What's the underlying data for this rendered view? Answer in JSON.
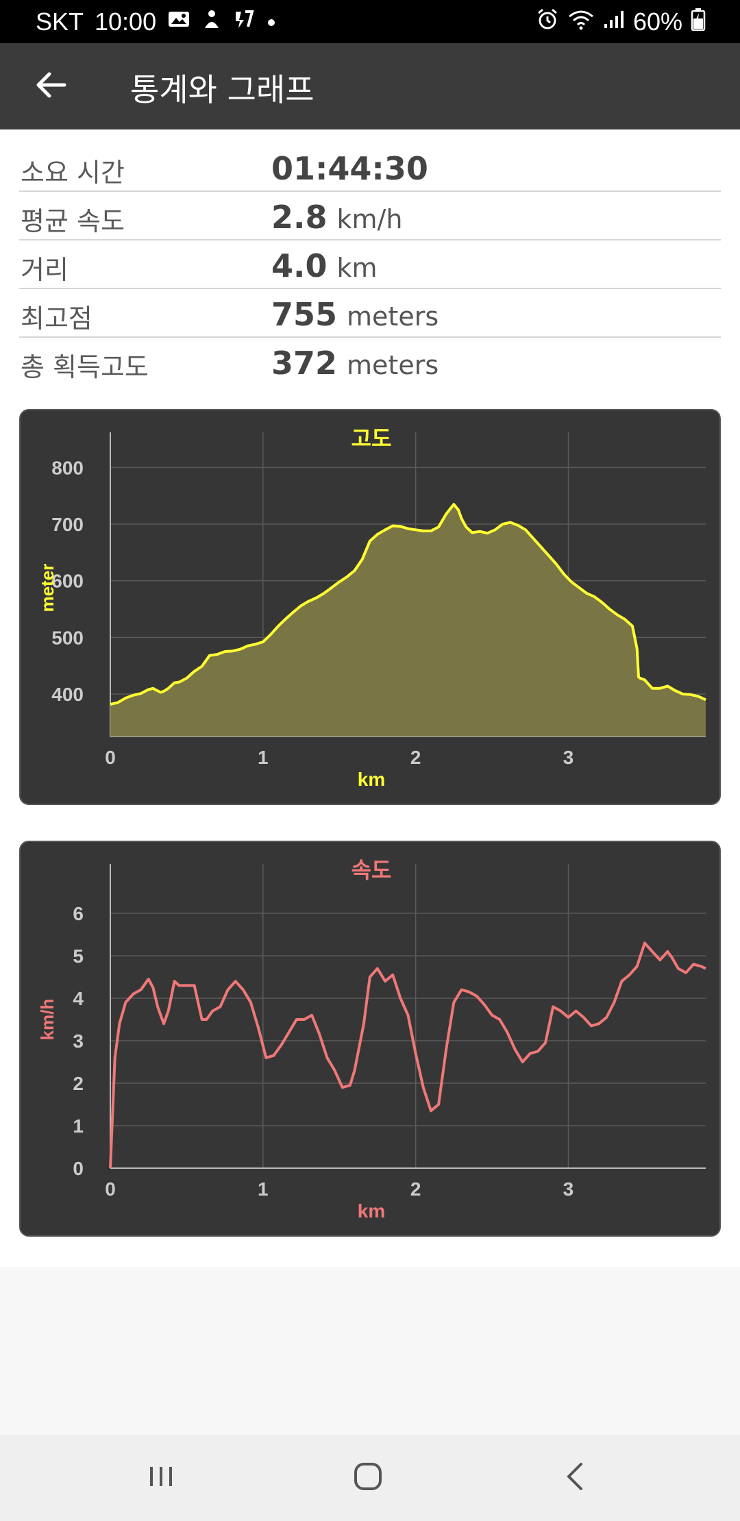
{
  "status_bar": {
    "carrier": "SKT",
    "time": "10:00",
    "battery": "60%",
    "icons": [
      "gallery-icon",
      "person-icon",
      "flash-icon",
      "dot-icon",
      "alarm-icon",
      "wifi-icon",
      "signal-icon",
      "battery-icon"
    ]
  },
  "app_bar": {
    "title": "통계와 그래프",
    "back_icon": "arrow-left-icon"
  },
  "stats": [
    {
      "label": "소요 시간",
      "value": "01:44:30",
      "unit": ""
    },
    {
      "label": "평균 속도",
      "value": "2.8",
      "unit": "km/h"
    },
    {
      "label": "거리",
      "value": "4.0",
      "unit": "km"
    },
    {
      "label": "최고점",
      "value": "755",
      "unit": "meters"
    },
    {
      "label": "총 획득고도",
      "value": "372",
      "unit": "meters"
    }
  ],
  "colors": {
    "elevation": "#ffff33",
    "elevation_fill": "#7a7544",
    "speed": "#f07878",
    "card_bg": "#363636",
    "grid": "#5a5a5a",
    "tick": "#cccccc"
  },
  "chart_data": [
    {
      "type": "area",
      "title": "고도",
      "xlabel": "km",
      "ylabel": "meter",
      "xlim": [
        0,
        3.9
      ],
      "ylim": [
        325,
        850
      ],
      "xticks": [
        0,
        1,
        2,
        3
      ],
      "yticks": [
        400,
        500,
        600,
        700,
        800
      ],
      "grid": true,
      "x": [
        0,
        0.05,
        0.1,
        0.15,
        0.2,
        0.25,
        0.28,
        0.3,
        0.33,
        0.35,
        0.38,
        0.42,
        0.45,
        0.5,
        0.55,
        0.6,
        0.65,
        0.7,
        0.75,
        0.8,
        0.85,
        0.9,
        0.95,
        1.0,
        1.05,
        1.1,
        1.15,
        1.2,
        1.25,
        1.3,
        1.35,
        1.4,
        1.45,
        1.5,
        1.55,
        1.6,
        1.65,
        1.7,
        1.75,
        1.8,
        1.85,
        1.9,
        1.95,
        2.0,
        2.05,
        2.1,
        2.15,
        2.2,
        2.25,
        2.28,
        2.3,
        2.33,
        2.37,
        2.42,
        2.47,
        2.52,
        2.57,
        2.62,
        2.67,
        2.72,
        2.77,
        2.82,
        2.87,
        2.92,
        2.97,
        3.02,
        3.07,
        3.12,
        3.17,
        3.22,
        3.27,
        3.32,
        3.37,
        3.42,
        3.45,
        3.46,
        3.47,
        3.5,
        3.55,
        3.6,
        3.65,
        3.7,
        3.75,
        3.8,
        3.85,
        3.9
      ],
      "y": [
        382,
        385,
        393,
        398,
        401,
        408,
        410,
        407,
        403,
        405,
        410,
        420,
        421,
        428,
        440,
        449,
        468,
        470,
        475,
        476,
        479,
        485,
        488,
        492,
        505,
        520,
        533,
        545,
        556,
        564,
        570,
        578,
        588,
        598,
        607,
        618,
        638,
        670,
        682,
        690,
        697,
        696,
        692,
        690,
        688,
        688,
        695,
        718,
        735,
        725,
        710,
        695,
        685,
        687,
        684,
        690,
        700,
        703,
        698,
        690,
        675,
        660,
        645,
        630,
        612,
        598,
        588,
        578,
        572,
        562,
        550,
        540,
        532,
        520,
        480,
        430,
        428,
        425,
        410,
        410,
        414,
        406,
        400,
        399,
        396,
        390
      ]
    },
    {
      "type": "line",
      "title": "속도",
      "xlabel": "km",
      "ylabel": "km/h",
      "xlim": [
        0,
        3.9
      ],
      "ylim": [
        0,
        7
      ],
      "xticks": [
        0,
        1,
        2,
        3
      ],
      "yticks": [
        0,
        1,
        2,
        3,
        4,
        5,
        6
      ],
      "grid": true,
      "x": [
        0,
        0.03,
        0.06,
        0.1,
        0.15,
        0.2,
        0.25,
        0.28,
        0.31,
        0.35,
        0.38,
        0.42,
        0.45,
        0.5,
        0.55,
        0.6,
        0.63,
        0.67,
        0.72,
        0.77,
        0.82,
        0.87,
        0.92,
        0.97,
        1.02,
        1.07,
        1.12,
        1.17,
        1.22,
        1.27,
        1.32,
        1.37,
        1.42,
        1.47,
        1.52,
        1.57,
        1.6,
        1.63,
        1.66,
        1.7,
        1.75,
        1.8,
        1.85,
        1.9,
        1.95,
        2.0,
        2.05,
        2.1,
        2.15,
        2.2,
        2.25,
        2.3,
        2.35,
        2.4,
        2.45,
        2.5,
        2.55,
        2.6,
        2.65,
        2.7,
        2.75,
        2.8,
        2.85,
        2.9,
        2.95,
        3.0,
        3.05,
        3.1,
        3.15,
        3.2,
        3.25,
        3.3,
        3.35,
        3.4,
        3.45,
        3.5,
        3.55,
        3.6,
        3.65,
        3.68,
        3.72,
        3.77,
        3.82,
        3.87,
        3.9
      ],
      "y": [
        0,
        2.6,
        3.4,
        3.9,
        4.1,
        4.2,
        4.45,
        4.25,
        3.8,
        3.4,
        3.7,
        4.4,
        4.3,
        4.3,
        4.3,
        3.5,
        3.5,
        3.7,
        3.8,
        4.2,
        4.4,
        4.2,
        3.9,
        3.3,
        2.6,
        2.65,
        2.9,
        3.2,
        3.5,
        3.5,
        3.6,
        3.15,
        2.6,
        2.3,
        1.9,
        1.95,
        2.3,
        2.85,
        3.4,
        4.5,
        4.7,
        4.4,
        4.55,
        4.0,
        3.6,
        2.7,
        1.9,
        1.35,
        1.5,
        2.8,
        3.9,
        4.2,
        4.15,
        4.05,
        3.85,
        3.6,
        3.5,
        3.2,
        2.8,
        2.5,
        2.7,
        2.75,
        2.95,
        3.8,
        3.7,
        3.55,
        3.7,
        3.55,
        3.35,
        3.4,
        3.55,
        3.9,
        4.4,
        4.55,
        4.75,
        5.3,
        5.1,
        4.9,
        5.1,
        4.95,
        4.7,
        4.6,
        4.8,
        4.75,
        4.7
      ]
    }
  ]
}
